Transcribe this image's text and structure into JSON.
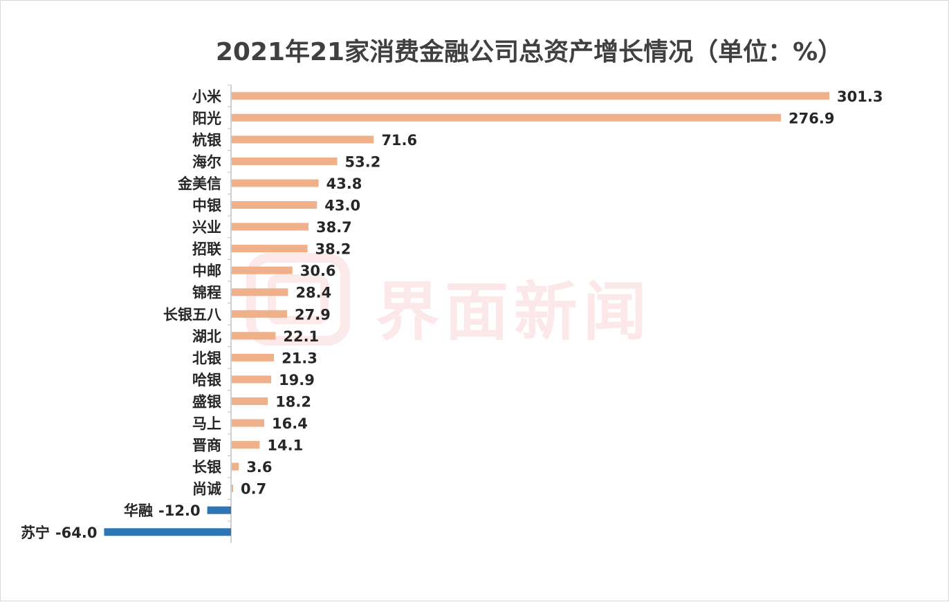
{
  "chart_data": {
    "type": "bar",
    "orientation": "horizontal",
    "title": "2021年21家消费金融公司总资产增长情况（单位：%）",
    "categories": [
      "小米",
      "阳光",
      "杭银",
      "海尔",
      "金美信",
      "中银",
      "兴业",
      "招联",
      "中邮",
      "锦程",
      "长银五八",
      "湖北",
      "北银",
      "哈银",
      "盛银",
      "马上",
      "晋商",
      "长银",
      "尚诚",
      "华融",
      "苏宁"
    ],
    "values": [
      301.3,
      276.9,
      71.6,
      53.2,
      43.8,
      43.0,
      38.7,
      38.2,
      30.6,
      28.4,
      27.9,
      22.1,
      21.3,
      19.9,
      18.2,
      16.4,
      14.1,
      3.6,
      0.7,
      -12.0,
      -64.0
    ],
    "value_labels": [
      "301.3",
      "276.9",
      "71.6",
      "53.2",
      "43.8",
      "43.0",
      "38.7",
      "38.2",
      "30.6",
      "28.4",
      "27.9",
      "22.1",
      "21.3",
      "19.9",
      "18.2",
      "16.4",
      "14.1",
      "3.6",
      "0.7",
      "-12.0",
      "-64.0"
    ],
    "xlim": [
      -64,
      301.3
    ],
    "grid": false,
    "xlabel": "",
    "ylabel": "",
    "colors": {
      "positive": "#f0b08a",
      "negative": "#2e75b6",
      "axis": "#bfbfbf"
    }
  },
  "watermark": {
    "text": "界面新闻",
    "color": "#e84a4a"
  }
}
